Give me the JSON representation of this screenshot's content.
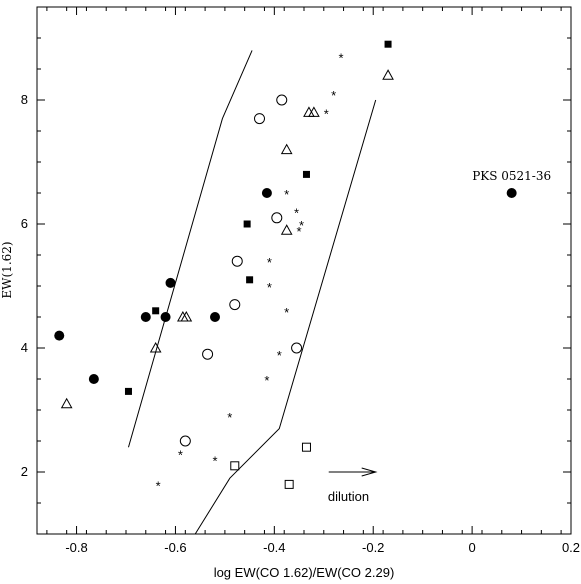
{
  "chart_data": {
    "type": "scatter",
    "title": "",
    "xlabel": "log EW(CO 1.62)/EW(CO 2.29)",
    "ylabel": "EW(1.62)",
    "xlim": [
      -0.88,
      0.2
    ],
    "ylim": [
      1.0,
      9.5
    ],
    "x_ticks": [
      -0.8,
      -0.6,
      -0.4,
      -0.2,
      0,
      0.2
    ],
    "x_tick_labels": [
      "-0.8",
      "-0.6",
      "-0.4",
      "-0.2",
      "0",
      "0.2"
    ],
    "y_ticks": [
      2,
      4,
      6,
      8
    ],
    "y_tick_labels": [
      "2",
      "4",
      "6",
      "8"
    ],
    "grid": false,
    "series": [
      {
        "marker": "filled-circle",
        "points": [
          {
            "x": -0.835,
            "y": 4.2
          },
          {
            "x": -0.765,
            "y": 3.5
          },
          {
            "x": -0.66,
            "y": 4.5
          },
          {
            "x": -0.62,
            "y": 4.5
          },
          {
            "x": -0.61,
            "y": 5.05
          },
          {
            "x": -0.52,
            "y": 4.5
          },
          {
            "x": -0.415,
            "y": 6.5
          },
          {
            "x": 0.08,
            "y": 6.5
          }
        ]
      },
      {
        "marker": "filled-square",
        "points": [
          {
            "x": -0.695,
            "y": 3.3
          },
          {
            "x": -0.64,
            "y": 4.6
          },
          {
            "x": -0.455,
            "y": 6.0
          },
          {
            "x": -0.45,
            "y": 5.1
          },
          {
            "x": -0.335,
            "y": 6.8
          },
          {
            "x": -0.17,
            "y": 8.9
          }
        ]
      },
      {
        "marker": "open-triangle",
        "points": [
          {
            "x": -0.82,
            "y": 3.1
          },
          {
            "x": -0.64,
            "y": 4.0
          },
          {
            "x": -0.585,
            "y": 4.5
          },
          {
            "x": -0.578,
            "y": 4.5
          },
          {
            "x": -0.375,
            "y": 7.2
          },
          {
            "x": -0.375,
            "y": 5.9
          },
          {
            "x": -0.33,
            "y": 7.8
          },
          {
            "x": -0.32,
            "y": 7.8
          },
          {
            "x": -0.17,
            "y": 8.4
          }
        ]
      },
      {
        "marker": "open-circle",
        "points": [
          {
            "x": -0.58,
            "y": 2.5
          },
          {
            "x": -0.535,
            "y": 3.9
          },
          {
            "x": -0.48,
            "y": 4.7
          },
          {
            "x": -0.475,
            "y": 5.4
          },
          {
            "x": -0.43,
            "y": 7.7
          },
          {
            "x": -0.395,
            "y": 6.1
          },
          {
            "x": -0.385,
            "y": 8.0
          },
          {
            "x": -0.355,
            "y": 4.0
          }
        ]
      },
      {
        "marker": "open-square",
        "points": [
          {
            "x": -0.48,
            "y": 2.1
          },
          {
            "x": -0.37,
            "y": 1.8
          },
          {
            "x": -0.335,
            "y": 2.4
          }
        ]
      },
      {
        "marker": "asterisk",
        "points": [
          {
            "x": -0.635,
            "y": 1.8
          },
          {
            "x": -0.59,
            "y": 2.3
          },
          {
            "x": -0.52,
            "y": 2.2
          },
          {
            "x": -0.49,
            "y": 2.9
          },
          {
            "x": -0.415,
            "y": 3.5
          },
          {
            "x": -0.41,
            "y": 5.0
          },
          {
            "x": -0.41,
            "y": 5.4
          },
          {
            "x": -0.39,
            "y": 3.9
          },
          {
            "x": -0.375,
            "y": 4.6
          },
          {
            "x": -0.375,
            "y": 6.5
          },
          {
            "x": -0.355,
            "y": 6.2
          },
          {
            "x": -0.345,
            "y": 6.0
          },
          {
            "x": -0.35,
            "y": 5.9
          },
          {
            "x": -0.295,
            "y": 7.8
          },
          {
            "x": -0.28,
            "y": 8.1
          },
          {
            "x": -0.265,
            "y": 8.7
          }
        ]
      }
    ],
    "boundary_lines": [
      {
        "points": [
          {
            "x": -0.695,
            "y": 2.4
          },
          {
            "x": -0.505,
            "y": 7.7
          },
          {
            "x": -0.445,
            "y": 8.8
          }
        ]
      },
      {
        "points": [
          {
            "x": -0.56,
            "y": 1.0
          },
          {
            "x": -0.49,
            "y": 1.9
          },
          {
            "x": -0.39,
            "y": 2.7
          },
          {
            "x": -0.195,
            "y": 8.0
          }
        ]
      }
    ],
    "annotations": [
      {
        "text": "PKS 0521-36",
        "x": 0.08,
        "y": 6.5
      },
      {
        "text": "dilution",
        "x": -0.25,
        "y": 1.6,
        "arrow": {
          "from": {
            "x": -0.29,
            "y": 2.0
          },
          "to": {
            "x": -0.195,
            "y": 2.0
          }
        }
      }
    ]
  }
}
